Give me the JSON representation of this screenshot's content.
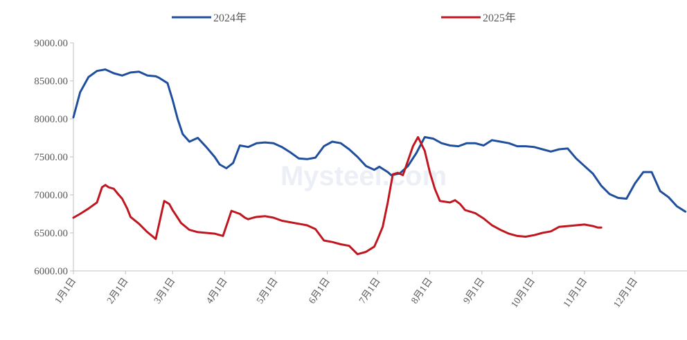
{
  "chart_data": {
    "type": "line",
    "title": "",
    "xlabel": "",
    "ylabel": "",
    "ylim": [
      6000,
      9000
    ],
    "y_ticks": [
      "9000.00",
      "8500.00",
      "8000.00",
      "7500.00",
      "7000.00",
      "6500.00",
      "6000.00"
    ],
    "x_ticks": [
      "1月1日",
      "2月1日",
      "3月1日",
      "4月1日",
      "5月1日",
      "6月1日",
      "7月1日",
      "8月1日",
      "9月1日",
      "10月1日",
      "11月1日",
      "12月1日"
    ],
    "x_unit": "day of year",
    "grid": false,
    "legend": "top",
    "watermark": "Mysteel.com",
    "series": [
      {
        "name": "2024年",
        "color": "#1f4e9c",
        "x": [
          1,
          5,
          10,
          15,
          20,
          25,
          30,
          35,
          40,
          45,
          50,
          52,
          57,
          60,
          63,
          66,
          70,
          75,
          80,
          85,
          88,
          92,
          96,
          100,
          105,
          110,
          115,
          120,
          125,
          130,
          135,
          140,
          145,
          150,
          155,
          160,
          165,
          170,
          175,
          180,
          183,
          188,
          190,
          195,
          200,
          205,
          210,
          215,
          220,
          225,
          230,
          235,
          240,
          245,
          250,
          255,
          260,
          265,
          270,
          275,
          280,
          285,
          290,
          295,
          300,
          305,
          310,
          315,
          320,
          325,
          330,
          335,
          340,
          345,
          350,
          355,
          360,
          365
        ],
        "values": [
          8020,
          8350,
          8550,
          8630,
          8650,
          8600,
          8570,
          8610,
          8620,
          8570,
          8560,
          8540,
          8470,
          8250,
          8000,
          7800,
          7700,
          7750,
          7630,
          7500,
          7400,
          7350,
          7420,
          7650,
          7630,
          7680,
          7690,
          7680,
          7630,
          7560,
          7480,
          7470,
          7490,
          7640,
          7700,
          7680,
          7600,
          7500,
          7380,
          7330,
          7370,
          7300,
          7260,
          7280,
          7380,
          7550,
          7760,
          7740,
          7680,
          7650,
          7640,
          7680,
          7680,
          7650,
          7720,
          7700,
          7680,
          7640,
          7640,
          7630,
          7600,
          7570,
          7600,
          7610,
          7480,
          7380,
          7280,
          7120,
          7010,
          6960,
          6950,
          7150,
          7300,
          7300,
          7050,
          6970,
          6850,
          6780
        ]
      },
      {
        "name": "2025年",
        "color": "#c0161f",
        "x": [
          1,
          5,
          10,
          15,
          18,
          20,
          22,
          25,
          28,
          30,
          33,
          35,
          40,
          45,
          50,
          55,
          58,
          60,
          63,
          65,
          70,
          75,
          80,
          85,
          90,
          95,
          100,
          103,
          105,
          108,
          110,
          115,
          120,
          125,
          130,
          135,
          140,
          145,
          150,
          155,
          160,
          165,
          170,
          175,
          180,
          182,
          185,
          188,
          191,
          194,
          197,
          200,
          203,
          206,
          210,
          213,
          216,
          219,
          222,
          225,
          228,
          231,
          234,
          237,
          240,
          245,
          250,
          255,
          260,
          265,
          270,
          275,
          280,
          285,
          290,
          295,
          300,
          305,
          310,
          313,
          315
        ],
        "values": [
          6700,
          6750,
          6820,
          6900,
          7100,
          7130,
          7100,
          7080,
          7000,
          6950,
          6820,
          6710,
          6620,
          6510,
          6420,
          6920,
          6880,
          6800,
          6700,
          6630,
          6540,
          6510,
          6500,
          6490,
          6460,
          6790,
          6750,
          6700,
          6680,
          6700,
          6710,
          6720,
          6700,
          6660,
          6640,
          6620,
          6600,
          6550,
          6400,
          6380,
          6350,
          6330,
          6220,
          6250,
          6320,
          6420,
          6580,
          6900,
          7270,
          7290,
          7260,
          7450,
          7640,
          7760,
          7580,
          7300,
          7080,
          6920,
          6910,
          6900,
          6930,
          6880,
          6800,
          6780,
          6760,
          6690,
          6600,
          6540,
          6490,
          6460,
          6450,
          6470,
          6500,
          6520,
          6580,
          6590,
          6600,
          6610,
          6590,
          6570,
          6570
        ]
      }
    ]
  }
}
